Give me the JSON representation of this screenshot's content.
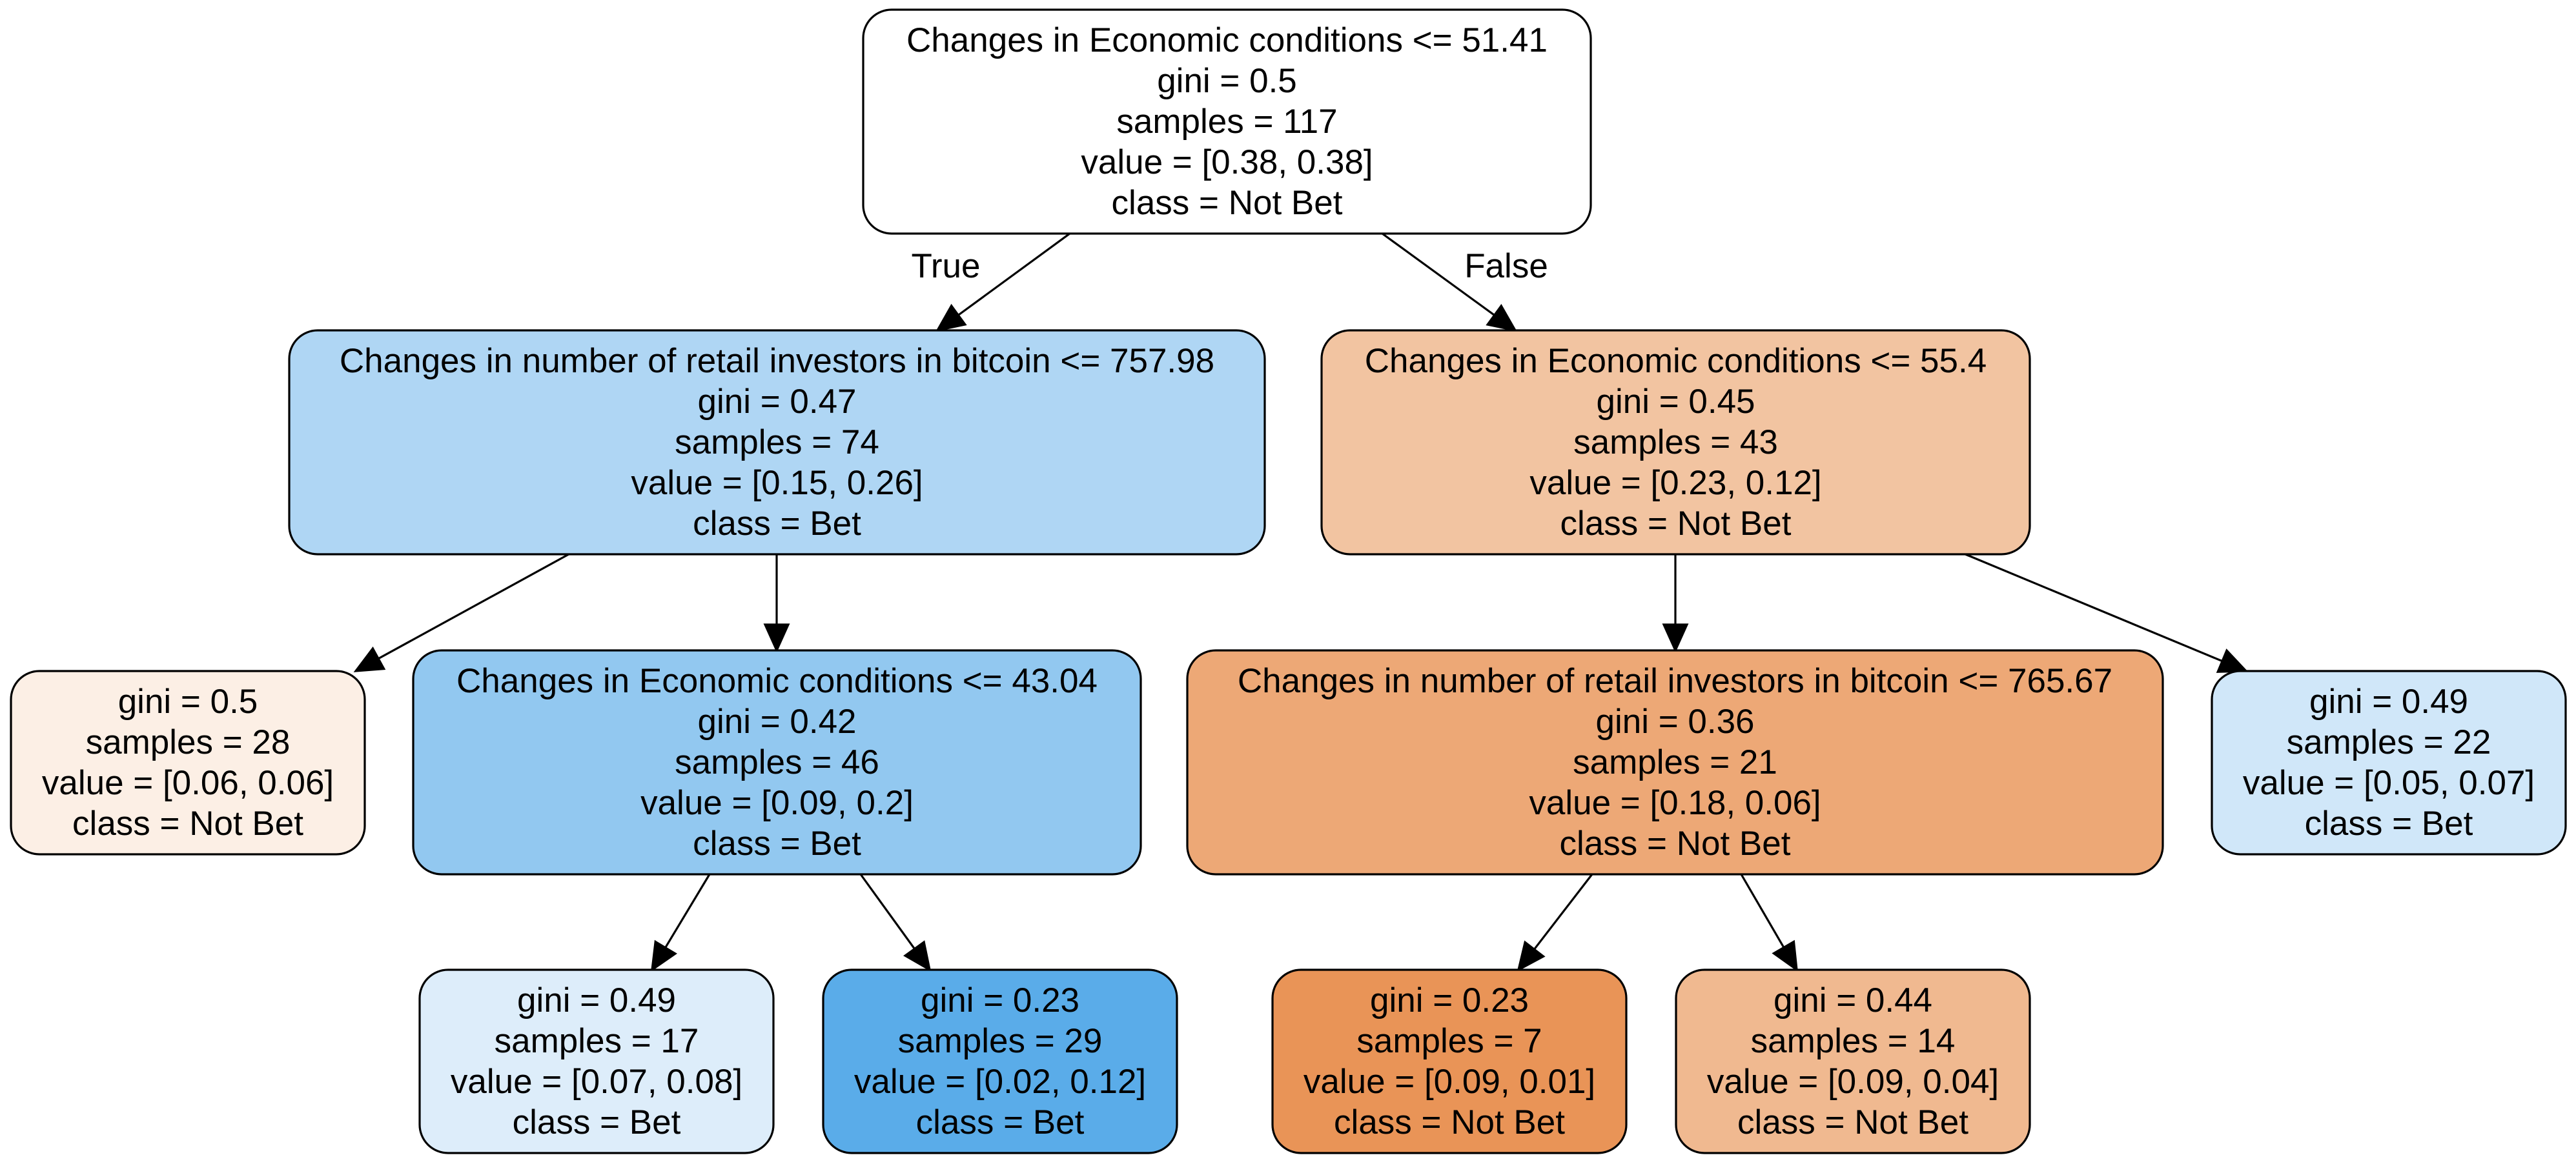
{
  "tree": {
    "nodes": [
      {
        "id": "n0",
        "lines": [
          "Changes in Economic conditions <= 51.41",
          "gini = 0.5",
          "samples = 117",
          "value = [0.38, 0.38]",
          "class = Not Bet"
        ],
        "fill": "#ffffff"
      },
      {
        "id": "n1",
        "lines": [
          "Changes in number of retail investors in bitcoin <= 757.98",
          "gini = 0.47",
          "samples = 74",
          "value = [0.15, 0.26]",
          "class = Bet"
        ],
        "fill": "#afd6f4"
      },
      {
        "id": "n2",
        "lines": [
          "gini = 0.5",
          "samples = 28",
          "value = [0.06, 0.06]",
          "class = Not Bet"
        ],
        "fill": "#fcefe5"
      },
      {
        "id": "n3",
        "lines": [
          "Changes in Economic conditions <= 43.04",
          "gini = 0.42",
          "samples = 46",
          "value = [0.09, 0.2]",
          "class = Bet"
        ],
        "fill": "#92c8f0"
      },
      {
        "id": "n4",
        "lines": [
          "gini = 0.49",
          "samples = 17",
          "value = [0.07, 0.08]",
          "class = Bet"
        ],
        "fill": "#ddedfa"
      },
      {
        "id": "n5",
        "lines": [
          "gini = 0.23",
          "samples = 29",
          "value = [0.02, 0.12]",
          "class = Bet"
        ],
        "fill": "#5aace9"
      },
      {
        "id": "n6",
        "lines": [
          "Changes in Economic conditions <= 55.4",
          "gini = 0.45",
          "samples = 43",
          "value = [0.23, 0.12]",
          "class = Not Bet"
        ],
        "fill": "#f2c4a1"
      },
      {
        "id": "n7",
        "lines": [
          "Changes in number of retail investors in bitcoin <= 765.67",
          "gini = 0.36",
          "samples = 21",
          "value = [0.18, 0.06]",
          "class = Not Bet"
        ],
        "fill": "#eda876"
      },
      {
        "id": "n8",
        "lines": [
          "gini = 0.23",
          "samples = 7",
          "value = [0.09, 0.01]",
          "class = Not Bet"
        ],
        "fill": "#e99457"
      },
      {
        "id": "n9",
        "lines": [
          "gini = 0.44",
          "samples = 14",
          "value = [0.09, 0.04]",
          "class = Not Bet"
        ],
        "fill": "#f0b990"
      },
      {
        "id": "n10",
        "lines": [
          "gini = 0.49",
          "samples = 22",
          "value = [0.05, 0.07]",
          "class = Bet"
        ],
        "fill": "#d0e7f9"
      }
    ],
    "edges": [
      {
        "from": "n0",
        "to": "n1",
        "label": "True"
      },
      {
        "from": "n0",
        "to": "n6",
        "label": "False"
      },
      {
        "from": "n1",
        "to": "n2",
        "label": ""
      },
      {
        "from": "n1",
        "to": "n3",
        "label": ""
      },
      {
        "from": "n3",
        "to": "n4",
        "label": ""
      },
      {
        "from": "n3",
        "to": "n5",
        "label": ""
      },
      {
        "from": "n6",
        "to": "n7",
        "label": ""
      },
      {
        "from": "n6",
        "to": "n10",
        "label": ""
      },
      {
        "from": "n7",
        "to": "n8",
        "label": ""
      },
      {
        "from": "n7",
        "to": "n9",
        "label": ""
      }
    ]
  }
}
